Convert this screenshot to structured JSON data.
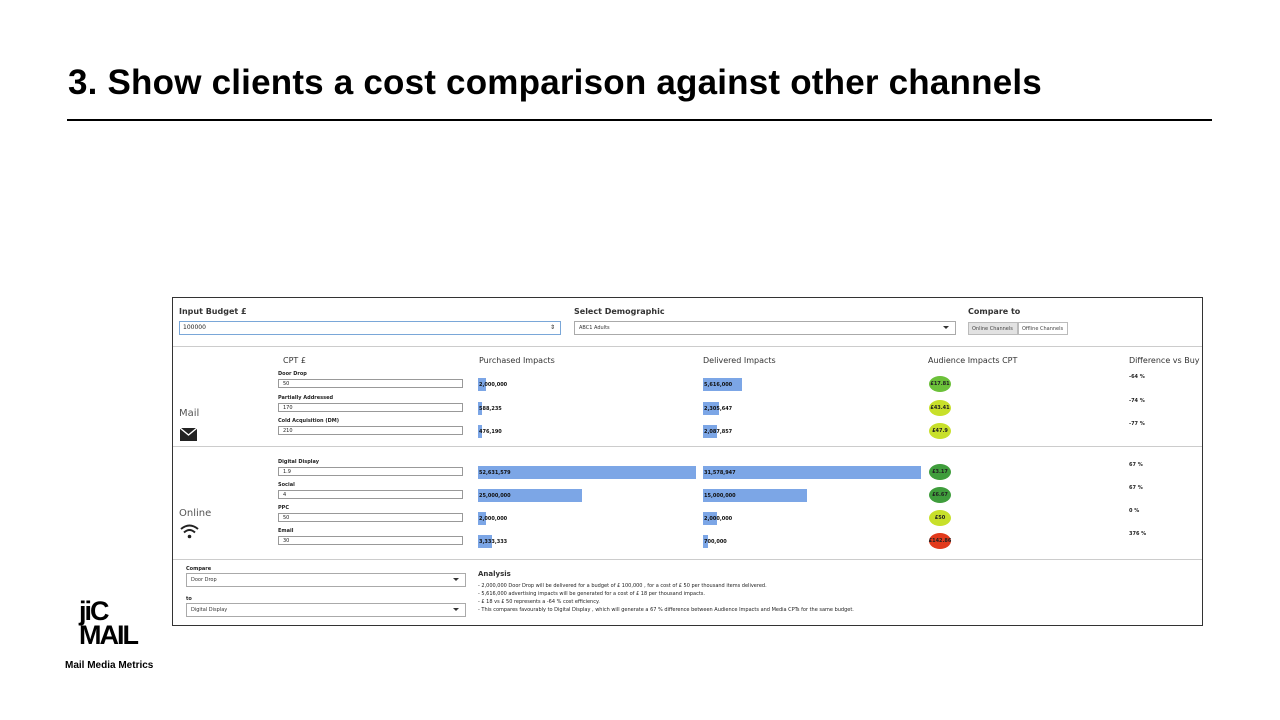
{
  "slide": {
    "title": "3. Show clients a cost comparison against other channels",
    "logo_top": "jiC",
    "logo_bottom": "MAIL",
    "logo_subtitle": "Mail Media Metrics"
  },
  "header": {
    "budget_label": "Input Budget £",
    "budget_value": "100000",
    "demographic_label": "Select Demographic",
    "demographic_value": "ABC1 Adults",
    "compare_label": "Compare to",
    "compare_buttons": [
      "Online Channels",
      "Offline Channels"
    ]
  },
  "columns": {
    "cpt": "CPT £",
    "purchased": "Purchased Impacts",
    "delivered": "Delivered Impacts",
    "audience_cpt": "Audience Impacts CPT",
    "difference": "Difference vs Buy"
  },
  "sections": {
    "mail": "Mail",
    "online": "Online"
  },
  "colors": {
    "bar": "#7ca6e6",
    "green_dark": "#3f9d3c",
    "green_mid": "#6cc13a",
    "yellow_green": "#c8e02a",
    "red": "#e23a1c"
  },
  "rows": [
    {
      "name": "Door Drop",
      "cpt": "50",
      "purchased": "2,000,000",
      "purchased_value": 2000000,
      "delivered": "5,616,000",
      "delivered_value": 5616000,
      "audience_cpt": "£17.81",
      "audience_color": "#6cc13a",
      "difference": "-64 %"
    },
    {
      "name": "Partially Addressed",
      "cpt": "170",
      "purchased": "588,235",
      "purchased_value": 588235,
      "delivered": "2,305,647",
      "delivered_value": 2305647,
      "audience_cpt": "£43.41",
      "audience_color": "#c8e02a",
      "difference": "-74 %"
    },
    {
      "name": "Cold Acquisition (DM)",
      "cpt": "210",
      "purchased": "476,190",
      "purchased_value": 476190,
      "delivered": "2,087,857",
      "delivered_value": 2087857,
      "audience_cpt": "£47.9",
      "audience_color": "#c8e02a",
      "difference": "-77 %"
    },
    {
      "name": "Digital Display",
      "cpt": "1.9",
      "purchased": "52,631,579",
      "purchased_value": 52631579,
      "delivered": "31,578,947",
      "delivered_value": 31578947,
      "audience_cpt": "£3.17",
      "audience_color": "#3f9d3c",
      "difference": "67 %"
    },
    {
      "name": "Social",
      "cpt": "4",
      "purchased": "25,000,000",
      "purchased_value": 25000000,
      "delivered": "15,000,000",
      "delivered_value": 15000000,
      "audience_cpt": "£6.67",
      "audience_color": "#3f9d3c",
      "difference": "67 %"
    },
    {
      "name": "PPC",
      "cpt": "50",
      "purchased": "2,000,000",
      "purchased_value": 2000000,
      "delivered": "2,000,000",
      "delivered_value": 2000000,
      "audience_cpt": "£50",
      "audience_color": "#c8e02a",
      "difference": "0 %"
    },
    {
      "name": "Email",
      "cpt": "30",
      "purchased": "3,333,333",
      "purchased_value": 3333333,
      "delivered": "700,000",
      "delivered_value": 700000,
      "audience_cpt": "£142.86",
      "audience_color": "#e23a1c",
      "difference": "376 %"
    }
  ],
  "compare_panel": {
    "compare_label": "Compare",
    "compare_value": "Door Drop",
    "to_label": "to",
    "to_value": "Digital Display"
  },
  "analysis": {
    "title": "Analysis",
    "lines": [
      "- 2,000,000 Door Drop will be delivered for a budget of £ 100,000 , for a cost of £ 50 per thousand items delivered.",
      "- 5,616,000 advertising impacts will be generated for a cost of £ 18 per thousand impacts.",
      "- £ 18 vs £ 50 represents a -64 % cost efficiency.",
      "- This compares favourably to Digital Display , which will generate a 67 % difference between Audience Impacts and Media CPTs for the same budget."
    ]
  }
}
